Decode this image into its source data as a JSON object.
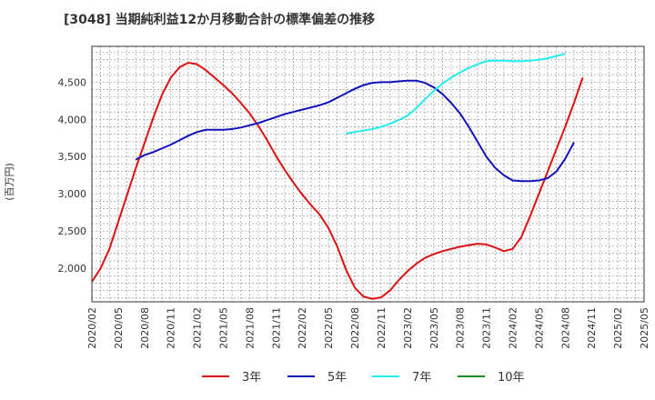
{
  "chart_data": {
    "type": "line",
    "title": "[3048]  当期純利益12か月移動合計の標準偏差の推移",
    "ylabel": "(百万円)",
    "xlabel": "",
    "ylim": [
      1550,
      4980
    ],
    "yticks": [
      2000,
      2500,
      3000,
      3500,
      4000,
      4500
    ],
    "ytick_labels": [
      "2,000",
      "2,500",
      "3,000",
      "3,500",
      "4,000",
      "4,500"
    ],
    "x_range_months": [
      0,
      63
    ],
    "xticks": [
      0,
      3,
      6,
      9,
      12,
      15,
      18,
      21,
      24,
      27,
      30,
      33,
      36,
      39,
      42,
      45,
      48,
      51,
      54,
      57,
      60,
      63
    ],
    "xtick_labels": [
      "2020/02",
      "2020/05",
      "2020/08",
      "2020/11",
      "2021/02",
      "2021/05",
      "2021/08",
      "2021/11",
      "2022/02",
      "2022/05",
      "2022/08",
      "2022/11",
      "2023/02",
      "2023/05",
      "2023/08",
      "2023/11",
      "2024/02",
      "2024/05",
      "2024/08",
      "2024/11",
      "2025/02",
      "2025/05"
    ],
    "grid": true,
    "legend_position": "bottom",
    "series": [
      {
        "name": "3年",
        "color": "#dd1111",
        "start_month": 0,
        "values": [
          1820,
          2000,
          2260,
          2620,
          2980,
          3340,
          3680,
          4020,
          4330,
          4560,
          4700,
          4760,
          4740,
          4660,
          4560,
          4460,
          4350,
          4220,
          4080,
          3910,
          3720,
          3510,
          3320,
          3150,
          2990,
          2850,
          2720,
          2540,
          2290,
          1980,
          1740,
          1620,
          1590,
          1610,
          1700,
          1840,
          1960,
          2060,
          2140,
          2190,
          2230,
          2260,
          2290,
          2310,
          2330,
          2320,
          2280,
          2230,
          2260,
          2420,
          2700,
          3000,
          3300,
          3600,
          3900,
          4220,
          4560
        ]
      },
      {
        "name": "5年",
        "color": "#1111bb",
        "start_month": 5,
        "values": [
          3460,
          3520,
          3560,
          3610,
          3660,
          3720,
          3780,
          3830,
          3860,
          3860,
          3860,
          3870,
          3890,
          3920,
          3950,
          3990,
          4030,
          4070,
          4100,
          4130,
          4160,
          4190,
          4230,
          4290,
          4350,
          4410,
          4460,
          4490,
          4500,
          4500,
          4510,
          4520,
          4520,
          4490,
          4430,
          4340,
          4220,
          4080,
          3900,
          3700,
          3500,
          3350,
          3250,
          3180,
          3170,
          3170,
          3180,
          3210,
          3300,
          3470,
          3690
        ]
      },
      {
        "name": "7年",
        "color": "#22eeee",
        "start_month": 29,
        "values": [
          3810,
          3830,
          3850,
          3870,
          3900,
          3940,
          3990,
          4050,
          4150,
          4270,
          4380,
          4480,
          4560,
          4630,
          4690,
          4740,
          4780,
          4790,
          4790,
          4780,
          4780,
          4790,
          4800,
          4820,
          4850,
          4880
        ]
      },
      {
        "name": "10年",
        "color": "#228822",
        "start_month": 0,
        "values": []
      }
    ]
  }
}
